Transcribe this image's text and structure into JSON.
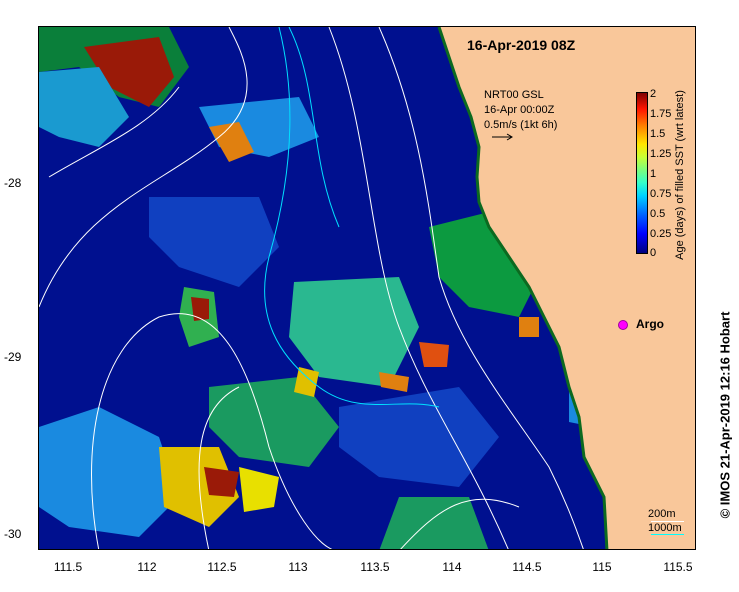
{
  "title": "16-Apr-2019 08Z",
  "current_legend": {
    "line1": "NRT00 GSL",
    "line2": "16-Apr 00:00Z",
    "line3": "0.5m/s (1kt 6h)"
  },
  "x_ticks": [
    "111.5",
    "112",
    "112.5",
    "113",
    "113.5",
    "114",
    "114.5",
    "115",
    "115.5"
  ],
  "y_ticks": [
    "-28",
    "-29",
    "-30"
  ],
  "colorbar": {
    "label": "Age (days) of filled SST (wrt latest)",
    "ticks": [
      "2",
      "1.75",
      "1.5",
      "1.25",
      "1",
      "0.75",
      "0.5",
      "0.25",
      "0"
    ],
    "colors": [
      "#00007f",
      "#0000ff",
      "#0063ff",
      "#00d4ff",
      "#35ffc9",
      "#7cff7c",
      "#c9ff35",
      "#ffe600",
      "#ff7b00",
      "#ff1400",
      "#7f0000"
    ]
  },
  "argo_label": "Argo",
  "depth_legend": {
    "label_200": "200m",
    "label_1000": "1000m",
    "color_200": "#ffffff",
    "color_1000": "#00ffff"
  },
  "credit": "© IMOS 21-Apr-2019 12:16 Hobart",
  "land_color": "#f9c79a",
  "ocean_color": "#00108f"
}
